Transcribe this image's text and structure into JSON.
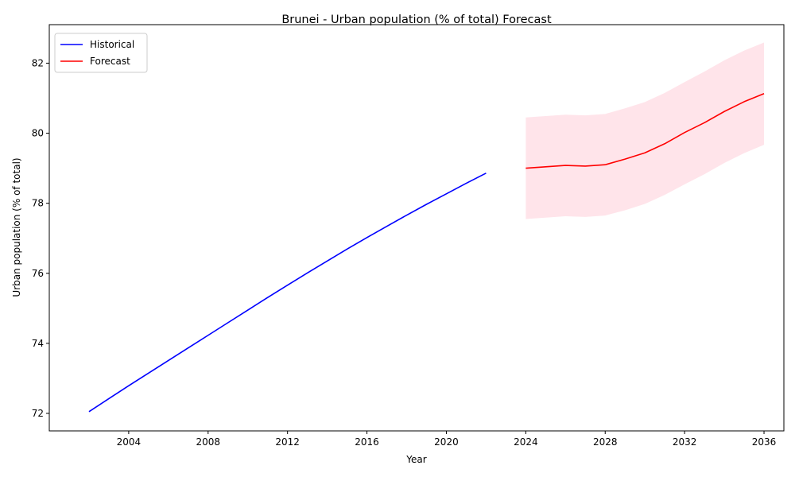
{
  "chart_data": {
    "type": "line",
    "title": "Brunei - Urban population (% of total) Forecast",
    "xlabel": "Year",
    "ylabel": "Urban population (% of total)",
    "xlim": [
      2000,
      2037
    ],
    "ylim": [
      71.5,
      83.1
    ],
    "xticks": [
      2004,
      2008,
      2012,
      2016,
      2020,
      2024,
      2028,
      2032,
      2036
    ],
    "yticks": [
      72,
      74,
      76,
      78,
      80,
      82
    ],
    "grid": false,
    "legend_position": "top-left",
    "series": [
      {
        "name": "Historical",
        "color": "#0000ff",
        "x": [
          2002,
          2003,
          2004,
          2005,
          2006,
          2007,
          2008,
          2009,
          2010,
          2011,
          2012,
          2013,
          2014,
          2015,
          2016,
          2017,
          2018,
          2019,
          2020,
          2021,
          2022
        ],
        "y": [
          72.05,
          72.42,
          72.79,
          73.15,
          73.51,
          73.87,
          74.23,
          74.59,
          74.95,
          75.31,
          75.66,
          76.01,
          76.35,
          76.69,
          77.02,
          77.34,
          77.66,
          77.97,
          78.27,
          78.57,
          78.86
        ]
      },
      {
        "name": "Forecast",
        "color": "#ff0000",
        "x": [
          2024,
          2025,
          2026,
          2027,
          2028,
          2029,
          2030,
          2031,
          2032,
          2033,
          2034,
          2035,
          2036
        ],
        "y": [
          79.0,
          79.04,
          79.08,
          79.06,
          79.1,
          79.26,
          79.44,
          79.7,
          80.02,
          80.3,
          80.62,
          80.9,
          81.13
        ]
      }
    ],
    "confidence_band": {
      "color": "#ffe4ea",
      "x": [
        2024,
        2025,
        2026,
        2027,
        2028,
        2029,
        2030,
        2031,
        2032,
        2033,
        2034,
        2035,
        2036
      ],
      "lower": [
        77.55,
        77.59,
        77.63,
        77.61,
        77.65,
        77.8,
        77.98,
        78.24,
        78.54,
        78.83,
        79.15,
        79.43,
        79.67
      ],
      "upper": [
        80.45,
        80.49,
        80.53,
        80.51,
        80.55,
        80.71,
        80.89,
        81.15,
        81.46,
        81.76,
        82.08,
        82.36,
        82.59
      ]
    }
  }
}
